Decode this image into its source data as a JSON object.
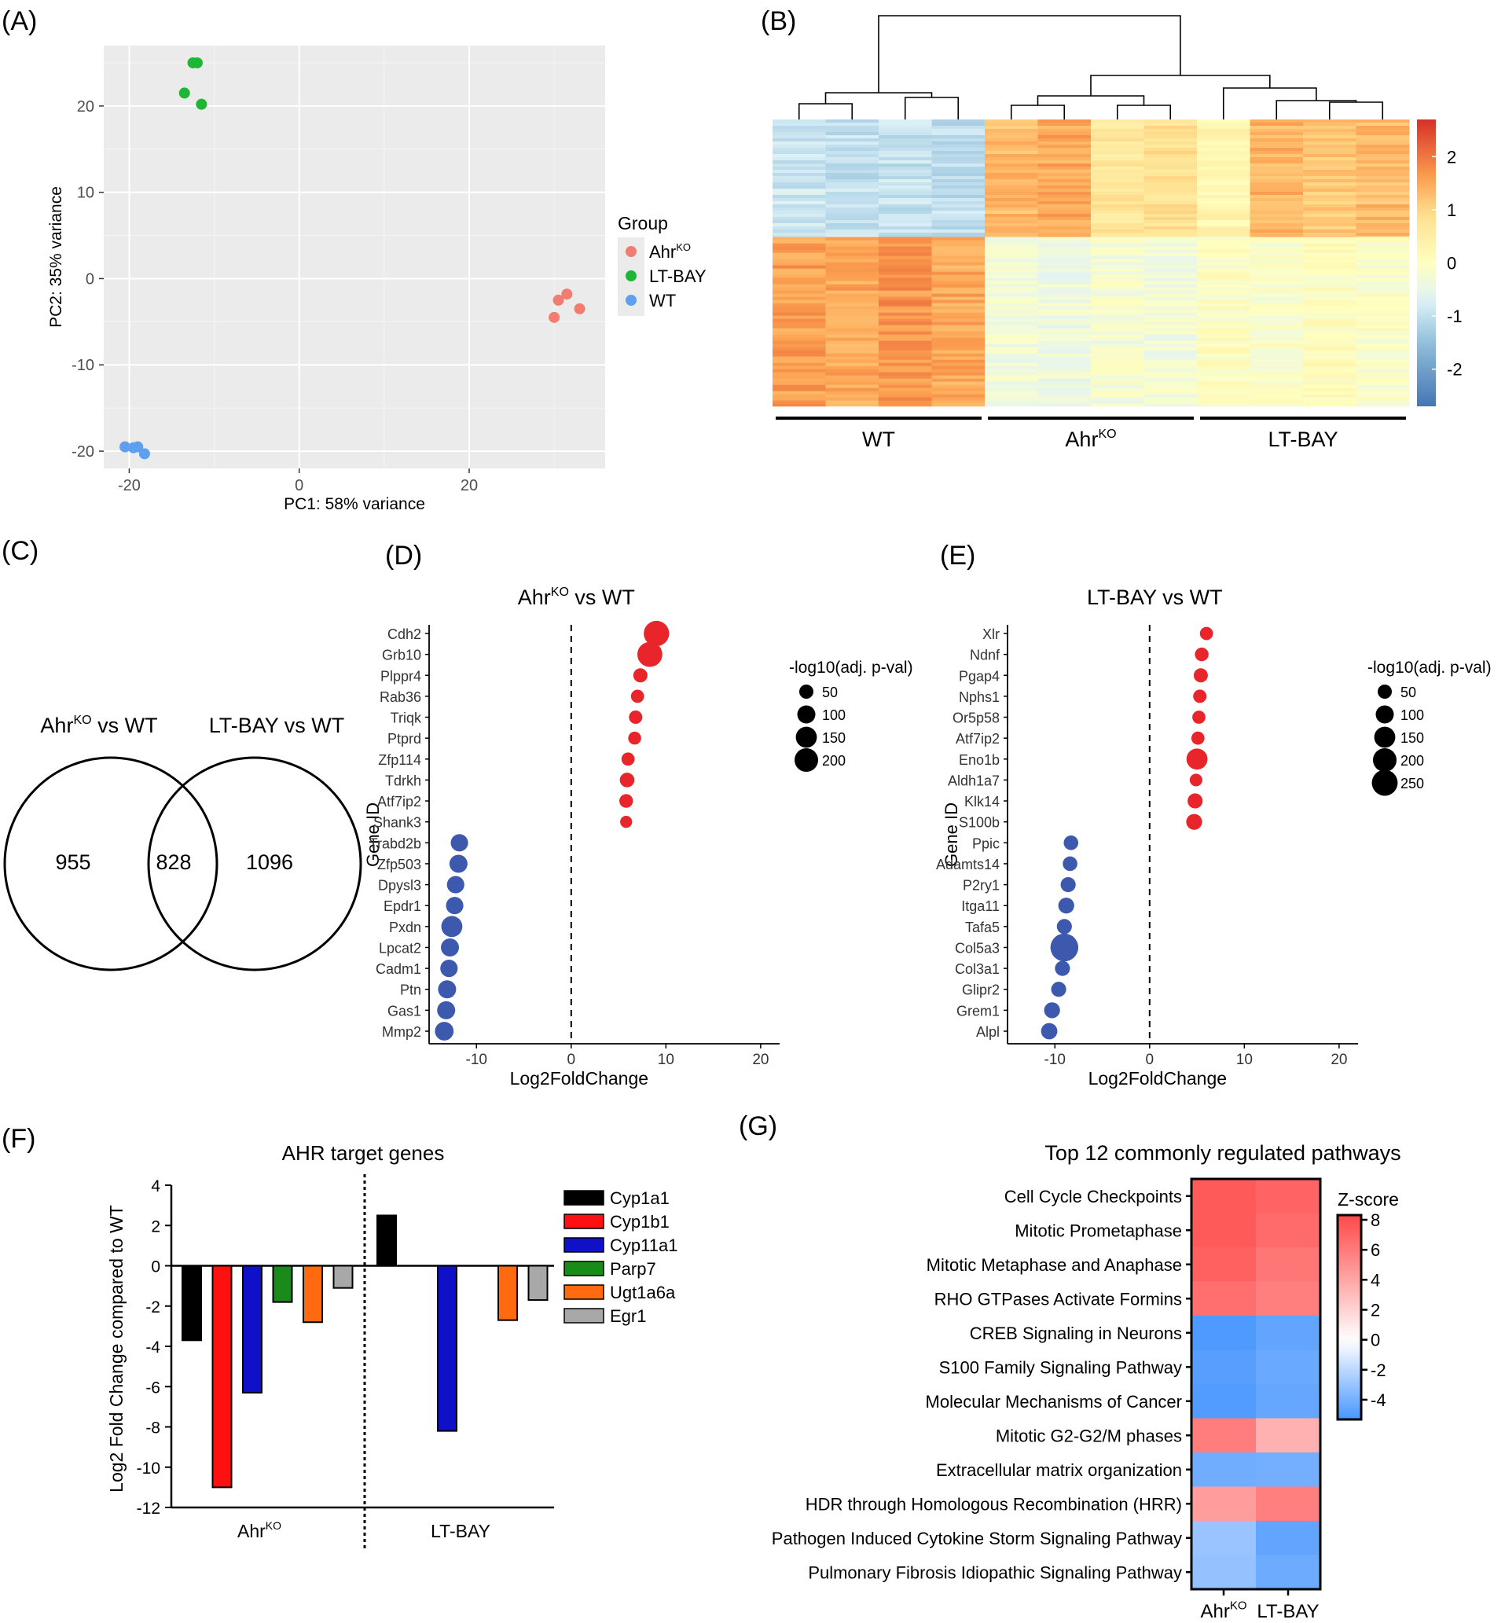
{
  "panels": {
    "A": {
      "label": "(A)"
    },
    "B": {
      "label": "(B)"
    },
    "C": {
      "label": "(C)"
    },
    "D": {
      "label": "(D)"
    },
    "E": {
      "label": "(E)"
    },
    "F": {
      "label": "(F)"
    },
    "G": {
      "label": "(G)"
    }
  },
  "colors": {
    "ahrko": "#f07c72",
    "ltbay": "#1fb535",
    "wt": "#5f9ff0",
    "up": "#e8252a",
    "down": "#3d59ad",
    "panel_bg": "#ebebeb",
    "cyp1a1": "#000000",
    "cyp1b1": "#ff1010",
    "cyp11a1": "#1010c8",
    "parp7": "#1a8a1a",
    "ugt1a6a": "#ff6a10",
    "egr1": "#a8a8a8"
  },
  "chart_data": [
    {
      "id": "A",
      "type": "scatter",
      "xlabel": "PC1: 58% variance",
      "ylabel": "PC2: 35% variance",
      "xlim": [
        -23,
        36
      ],
      "ylim": [
        -22,
        27
      ],
      "xticks": [
        -20,
        0,
        20
      ],
      "yticks": [
        20,
        10,
        0,
        -10,
        -20
      ],
      "xtick_labels": [
        "-20",
        "0",
        "20"
      ],
      "ytick_labels": [
        "20",
        "10",
        "0",
        "-10",
        "-20"
      ],
      "legend_title": "Group",
      "series": [
        {
          "name": "Ahr",
          "sup": "KO",
          "color_key": "ahrko",
          "points": [
            [
              31.5,
              -1.8
            ],
            [
              30.5,
              -2.5
            ],
            [
              33,
              -3.5
            ],
            [
              30,
              -4.5
            ]
          ]
        },
        {
          "name": "LT-BAY",
          "sup": "",
          "color_key": "ltbay",
          "points": [
            [
              -12.5,
              25
            ],
            [
              -12,
              25
            ],
            [
              -13.5,
              21.5
            ],
            [
              -11.5,
              20.2
            ]
          ]
        },
        {
          "name": "WT",
          "sup": "",
          "color_key": "wt",
          "points": [
            [
              -20.5,
              -19.5
            ],
            [
              -19.5,
              -19.6
            ],
            [
              -19,
              -19.5
            ],
            [
              -18.2,
              -20.3
            ]
          ]
        }
      ]
    },
    {
      "id": "B",
      "type": "heatmap",
      "colorbar_ticks": [
        2,
        1,
        0,
        -1,
        -2
      ],
      "colorbar_labels": [
        "2",
        "1",
        "0",
        "-1",
        "-2"
      ],
      "colorbar_range": [
        -2.7,
        2.7
      ],
      "groups": [
        {
          "name": "WT",
          "sup": ""
        },
        {
          "name": "Ahr",
          "sup": "KO"
        },
        {
          "name": "LT-BAY",
          "sup": ""
        }
      ],
      "column_values": {
        "top": [
          -0.9,
          -1.0,
          -0.95,
          -1.0,
          1.3,
          1.5,
          0.7,
          0.8,
          0.3,
          1.4,
          1.2,
          1.3
        ],
        "bottom": [
          1.6,
          1.5,
          1.7,
          1.5,
          -0.3,
          -0.4,
          -0.2,
          -0.3,
          0.0,
          -0.1,
          0.05,
          -0.1
        ]
      },
      "row_split_fraction": 0.41
    },
    {
      "id": "C",
      "type": "venn",
      "set_labels": [
        {
          "name": "Ahr",
          "sup": "KO",
          "rest": " vs WT"
        },
        {
          "name": "LT-BAY vs WT",
          "sup": "",
          "rest": ""
        }
      ],
      "values": {
        "left_only": "955",
        "both": "828",
        "right_only": "1096"
      }
    },
    {
      "id": "D",
      "type": "dot",
      "title_main": "Ahr",
      "title_sup": "KO",
      "title_rest": " vs WT",
      "xlabel": "Log2FoldChange",
      "ylabel": "Gene ID",
      "xlim": [
        -15,
        22
      ],
      "xticks": [
        -10,
        0,
        10,
        20
      ],
      "xtick_labels": [
        "-10",
        "0",
        "10",
        "20"
      ],
      "size_legend_title": "-log10(adj. p-val)",
      "size_legend_values": [
        50,
        100,
        150,
        200
      ],
      "size_legend_labels": [
        "50",
        "100",
        "150",
        "200"
      ],
      "genes": [
        "Cdh2",
        "Grb10",
        "Plppr4",
        "Rab36",
        "Triqk",
        "Ptprd",
        "Zfp114",
        "Tdrkh",
        "Atf7ip2",
        "Shank3",
        "Trabd2b",
        "Zfp503",
        "Dpysl3",
        "Epdr1",
        "Pxdn",
        "Lpcat2",
        "Cadm1",
        "Ptn",
        "Gas1",
        "Mmp2"
      ],
      "lfc": [
        9,
        8.3,
        7.3,
        7,
        6.8,
        6.7,
        6,
        5.9,
        5.8,
        5.8,
        -11.8,
        -11.9,
        -12.2,
        -12.3,
        -12.6,
        -12.8,
        -12.9,
        -13.1,
        -13.2,
        -13.4
      ],
      "pval": [
        240,
        230,
        50,
        40,
        42,
        38,
        40,
        55,
        45,
        30,
        90,
        100,
        90,
        90,
        150,
        100,
        90,
        100,
        100,
        110
      ]
    },
    {
      "id": "E",
      "type": "dot",
      "title_main": "LT-BAY vs WT",
      "title_sup": "",
      "title_rest": "",
      "xlabel": "Log2FoldChange",
      "ylabel": "Gene ID",
      "xlim": [
        -15,
        22
      ],
      "xticks": [
        -10,
        0,
        10,
        20
      ],
      "xtick_labels": [
        "-10",
        "0",
        "10",
        "20"
      ],
      "size_legend_title": "-log10(adj. p-val)",
      "size_legend_values": [
        50,
        100,
        150,
        200,
        250
      ],
      "size_legend_labels": [
        "50",
        "100",
        "150",
        "200",
        "250"
      ],
      "genes": [
        "Xlr",
        "Ndnf",
        "Pgap4",
        "Nphs1",
        "Or5p58",
        "Atf7ip2",
        "Eno1b",
        "Aldh1a7",
        "Klk14",
        "S100b",
        "Ppic",
        "Adamts14",
        "P2ry1",
        "Itga11",
        "Tafa5",
        "Col5a3",
        "Col3a1",
        "Glipr2",
        "Grem1",
        "Alpl"
      ],
      "lfc": [
        6,
        5.5,
        5.4,
        5.3,
        5.2,
        5.1,
        5,
        4.9,
        4.8,
        4.7,
        -8.3,
        -8.4,
        -8.6,
        -8.8,
        -9,
        -9,
        -9.2,
        -9.6,
        -10.3,
        -10.6
      ],
      "pval": [
        40,
        45,
        50,
        42,
        40,
        40,
        150,
        35,
        60,
        70,
        55,
        55,
        60,
        70,
        60,
        300,
        60,
        60,
        70,
        75
      ]
    },
    {
      "id": "F",
      "type": "bar",
      "title": "AHR target genes",
      "ylabel": "Log2 Fold Change compared to WT",
      "ylim": [
        -12,
        4
      ],
      "yticks": [
        4,
        2,
        0,
        -2,
        -4,
        -6,
        -8,
        -10,
        -12
      ],
      "ytick_labels": [
        "4",
        "2",
        "0",
        "-2",
        "-4",
        "-6",
        "-8",
        "-10",
        "-12"
      ],
      "categories": [
        {
          "name": "Ahr",
          "sup": "KO"
        },
        {
          "name": "LT-BAY",
          "sup": ""
        }
      ],
      "series": [
        {
          "name": "Cyp1a1",
          "color_key": "cyp1a1",
          "values": [
            -3.7,
            2.5
          ]
        },
        {
          "name": "Cyp1b1",
          "color_key": "cyp1b1",
          "values": [
            -11,
            0
          ]
        },
        {
          "name": "Cyp11a1",
          "color_key": "cyp11a1",
          "values": [
            -6.3,
            -8.2
          ]
        },
        {
          "name": "Parp7",
          "color_key": "parp7",
          "values": [
            -1.8,
            0
          ]
        },
        {
          "name": "Ugt1a6a",
          "color_key": "ugt1a6a",
          "values": [
            -2.8,
            -2.7
          ]
        },
        {
          "name": "Egr1",
          "color_key": "egr1",
          "values": [
            -1.1,
            -1.7
          ]
        }
      ]
    },
    {
      "id": "G",
      "type": "heatmap",
      "title": "Top 12 commonly regulated pathways",
      "colorbar_title": "Z-score",
      "colorbar_range": [
        -5,
        8
      ],
      "colorbar_ticks": [
        8,
        6,
        4,
        2,
        0,
        -2,
        -4
      ],
      "colorbar_labels": [
        "8",
        "6",
        "4",
        "2",
        "0",
        "-2",
        "-4"
      ],
      "columns": [
        {
          "name": "Ahr",
          "sup": "KO"
        },
        {
          "name": "LT-BAY",
          "sup": ""
        }
      ],
      "rows": [
        "Cell Cycle Checkpoints",
        "Mitotic Prometaphase",
        "Mitotic Metaphase and Anaphase",
        "RHO GTPases Activate Formins",
        "CREB Signaling in Neurons",
        "S100 Family Signaling Pathway",
        "Molecular Mechanisms of Cancer",
        "Mitotic G2-G2/M phases",
        "Extracellular matrix organization",
        "HDR through Homologous Recombination (HRR)",
        "Pathogen Induced Cytokine Storm Signaling Pathway",
        "Pulmonary Fibrosis Idiopathic Signaling Pathway"
      ],
      "values": [
        [
          7.2,
          6.8
        ],
        [
          7.2,
          6.5
        ],
        [
          6.9,
          6.0
        ],
        [
          6.3,
          5.6
        ],
        [
          -4.8,
          -4.3
        ],
        [
          -4.6,
          -4.1
        ],
        [
          -4.7,
          -4.2
        ],
        [
          5.7,
          3.4
        ],
        [
          -3.9,
          -3.8
        ],
        [
          4.3,
          5.6
        ],
        [
          -2.8,
          -4.3
        ],
        [
          -2.9,
          -4.0
        ]
      ]
    }
  ]
}
